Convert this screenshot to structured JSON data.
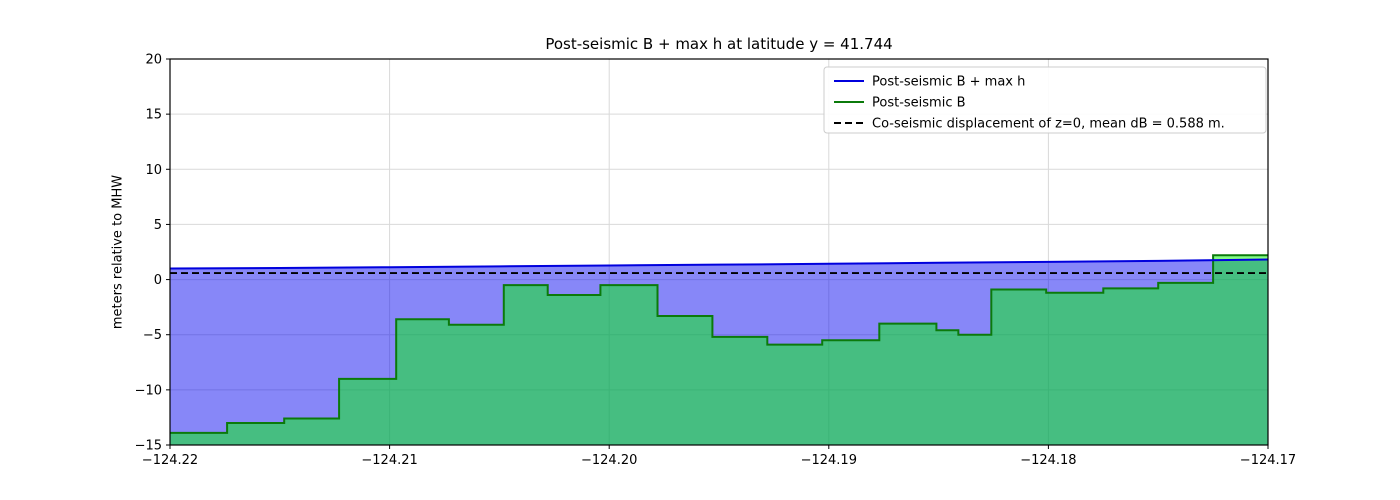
{
  "figure": {
    "title": "Post-seismic B + max h at latitude y = 41.744",
    "ylabel": "meters relative to MHW"
  },
  "chart_data": {
    "type": "line",
    "title": "Post-seismic B + max h at latitude y = 41.744",
    "xlabel": "",
    "ylabel": "meters relative to MHW",
    "xlim": [
      -124.22,
      -124.17
    ],
    "ylim": [
      -15,
      20
    ],
    "grid": true,
    "xticks": {
      "values": [
        -124.22,
        -124.21,
        -124.2,
        -124.19,
        -124.18,
        -124.17
      ],
      "labels": [
        "−124.22",
        "−124.21",
        "−124.20",
        "−124.19",
        "−124.18",
        "−124.17"
      ]
    },
    "yticks": {
      "values": [
        -15,
        -10,
        -5,
        0,
        5,
        10,
        15,
        20
      ],
      "labels": [
        "−15",
        "−10",
        "−5",
        "0",
        "5",
        "10",
        "15",
        "20"
      ]
    },
    "legend": {
      "position": "upper right",
      "entries": [
        "Post-seismic B + max h",
        "Post-seismic B",
        "Co-seismic displacement of z=0, mean dB = 0.588 m."
      ]
    },
    "series": [
      {
        "name": "Post-seismic B + max h",
        "type": "line",
        "color": "#0000dd",
        "fill_color": "rgba(0,0,240,0.47)",
        "x": [
          -124.22,
          -124.215,
          -124.21,
          -124.205,
          -124.2,
          -124.195,
          -124.19,
          -124.185,
          -124.18,
          -124.175,
          -124.17
        ],
        "y": [
          1.0,
          1.05,
          1.12,
          1.2,
          1.28,
          1.35,
          1.43,
          1.52,
          1.6,
          1.7,
          1.82
        ]
      },
      {
        "name": "Post-seismic B",
        "type": "step",
        "color": "#0b7a0b",
        "fill_color": "rgba(0,250,0,0.48)",
        "x_edges": [
          -124.22,
          -124.2174,
          -124.2148,
          -124.2123,
          -124.2097,
          -124.2073,
          -124.2048,
          -124.2028,
          -124.2004,
          -124.1978,
          -124.1953,
          -124.1928,
          -124.1903,
          -124.1877,
          -124.1851,
          -124.1841,
          -124.1826,
          -124.1801,
          -124.1775,
          -124.175,
          -124.1725,
          -124.17
        ],
        "y": [
          -13.9,
          -13.0,
          -12.6,
          -9.0,
          -3.6,
          -4.1,
          -0.5,
          -1.4,
          -0.5,
          -3.3,
          -5.2,
          -5.9,
          -5.5,
          -4.0,
          -4.6,
          -5.0,
          -0.9,
          -1.2,
          -0.8,
          -0.3,
          2.2
        ]
      },
      {
        "name": "Co-seismic displacement of z=0, mean dB = 0.588 m.",
        "type": "hline",
        "color": "#000000",
        "dash": "7 4",
        "y_const": 0.588,
        "mean_dB_m": 0.588
      }
    ]
  }
}
